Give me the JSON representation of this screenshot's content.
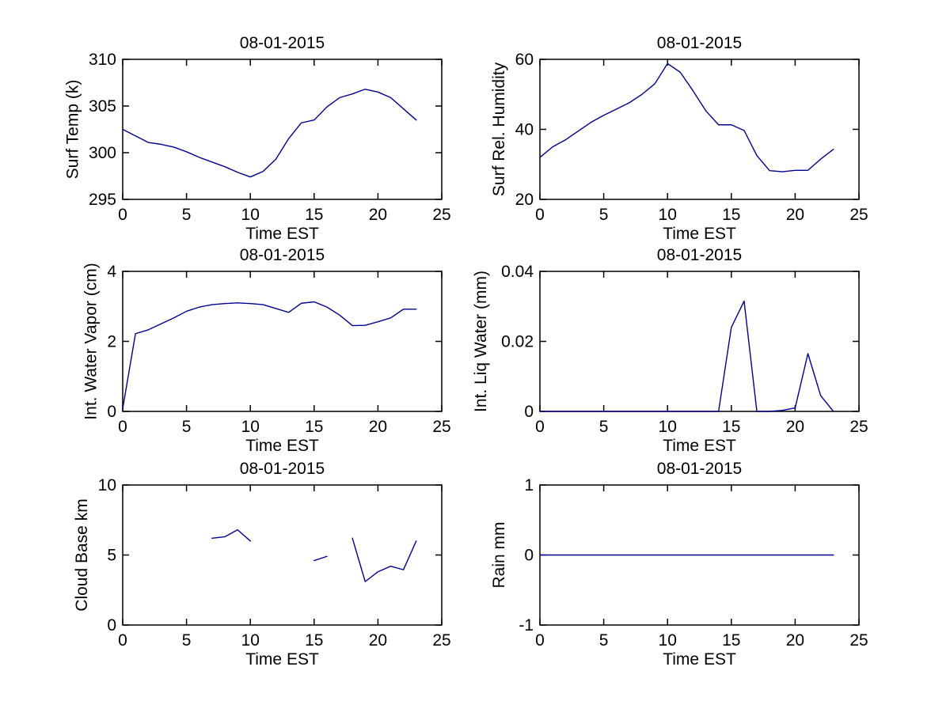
{
  "figure": {
    "background": "#ffffff",
    "axis_color": "#000000",
    "text_color": "#000000",
    "line_color": "#000090"
  },
  "chart_data": [
    {
      "type": "line",
      "title": "08-01-2015",
      "xlabel": "Time EST",
      "ylabel": "Surf Temp (k)",
      "xlim": [
        0,
        25
      ],
      "ylim": [
        295,
        310
      ],
      "xticks": [
        0,
        5,
        10,
        15,
        20,
        25
      ],
      "yticks": [
        295,
        300,
        305,
        310
      ],
      "grid": false,
      "x": [
        0,
        1,
        2,
        3,
        4,
        5,
        6,
        7,
        8,
        9,
        10,
        11,
        12,
        13,
        14,
        15,
        16,
        17,
        18,
        19,
        20,
        21,
        22,
        23
      ],
      "y": [
        302.5,
        301.8,
        301.1,
        300.9,
        300.6,
        300.1,
        299.5,
        299.0,
        298.5,
        297.9,
        297.4,
        298.0,
        299.3,
        301.5,
        303.2,
        303.5,
        304.9,
        305.9,
        306.3,
        306.8,
        306.5,
        305.9,
        304.7,
        303.5
      ]
    },
    {
      "type": "line",
      "title": "08-01-2015",
      "xlabel": "Time EST",
      "ylabel": "Surf Rel. Humidity",
      "xlim": [
        0,
        25
      ],
      "ylim": [
        20,
        60
      ],
      "xticks": [
        0,
        5,
        10,
        15,
        20,
        25
      ],
      "yticks": [
        20,
        40,
        60
      ],
      "grid": false,
      "x": [
        0,
        1,
        2,
        3,
        4,
        5,
        6,
        7,
        8,
        9,
        10,
        11,
        12,
        13,
        14,
        15,
        16,
        17,
        18,
        19,
        20,
        21,
        22,
        23
      ],
      "y": [
        32,
        35,
        37,
        39.5,
        42,
        44,
        45.8,
        47.6,
        50,
        53,
        58.8,
        56.3,
        51,
        45.3,
        41.3,
        41.3,
        39.7,
        32.5,
        28.2,
        27.9,
        28.3,
        28.3,
        31.5,
        34.3
      ]
    },
    {
      "type": "line",
      "title": "08-01-2015",
      "xlabel": "Time EST",
      "ylabel": "Int. Water Vapor (cm)",
      "xlim": [
        0,
        25
      ],
      "ylim": [
        0,
        4
      ],
      "xticks": [
        0,
        5,
        10,
        15,
        20,
        25
      ],
      "yticks": [
        0,
        2,
        4
      ],
      "grid": false,
      "x": [
        0,
        1,
        2,
        3,
        4,
        5,
        6,
        7,
        8,
        9,
        10,
        11,
        12,
        13,
        14,
        15,
        16,
        17,
        18,
        19,
        20,
        21,
        22,
        23
      ],
      "y": [
        0.08,
        2.22,
        2.33,
        2.5,
        2.67,
        2.86,
        2.98,
        3.05,
        3.08,
        3.1,
        3.08,
        3.05,
        2.94,
        2.83,
        3.09,
        3.13,
        2.98,
        2.75,
        2.45,
        2.46,
        2.56,
        2.67,
        2.92,
        2.92
      ]
    },
    {
      "type": "line",
      "title": "08-01-2015",
      "xlabel": "Time EST",
      "ylabel": "Int. Liq Water (mm)",
      "xlim": [
        0,
        25
      ],
      "ylim": [
        0,
        0.04
      ],
      "xticks": [
        0,
        5,
        10,
        15,
        20,
        25
      ],
      "yticks": [
        0,
        0.02,
        0.04
      ],
      "grid": false,
      "x": [
        0,
        1,
        2,
        3,
        4,
        5,
        6,
        7,
        8,
        9,
        10,
        11,
        12,
        13,
        14,
        15,
        16,
        17,
        18,
        19,
        20,
        21,
        22,
        23
      ],
      "y": [
        0,
        0,
        0,
        0,
        0,
        0,
        0,
        0,
        0,
        0,
        0,
        0,
        0,
        0,
        0,
        0.024,
        0.0315,
        0,
        0,
        0.0003,
        0.001,
        0.0165,
        0.0045,
        0
      ]
    },
    {
      "type": "line",
      "title": "08-01-2015",
      "xlabel": "Time EST",
      "ylabel": "Cloud Base km",
      "xlim": [
        0,
        25
      ],
      "ylim": [
        0,
        10
      ],
      "xticks": [
        0,
        5,
        10,
        15,
        20,
        25
      ],
      "yticks": [
        0,
        5,
        10
      ],
      "grid": false,
      "x": [
        0,
        1,
        2,
        3,
        4,
        5,
        6,
        7,
        8,
        9,
        10,
        11,
        12,
        13,
        14,
        15,
        16,
        17,
        18,
        19,
        20,
        21,
        22,
        23
      ],
      "y": [
        null,
        null,
        null,
        null,
        null,
        null,
        null,
        6.2,
        6.3,
        6.8,
        6.0,
        null,
        null,
        null,
        null,
        4.6,
        4.9,
        null,
        6.2,
        3.1,
        3.8,
        4.2,
        3.95,
        6.0
      ]
    },
    {
      "type": "line",
      "title": "08-01-2015",
      "xlabel": "Time EST",
      "ylabel": "Rain mm",
      "xlim": [
        0,
        25
      ],
      "ylim": [
        -1,
        1
      ],
      "xticks": [
        0,
        5,
        10,
        15,
        20,
        25
      ],
      "yticks": [
        -1,
        0,
        1
      ],
      "grid": false,
      "x": [
        0,
        1,
        2,
        3,
        4,
        5,
        6,
        7,
        8,
        9,
        10,
        11,
        12,
        13,
        14,
        15,
        16,
        17,
        18,
        19,
        20,
        21,
        22,
        23
      ],
      "y": [
        0,
        0,
        0,
        0,
        0,
        0,
        0,
        0,
        0,
        0,
        0,
        0,
        0,
        0,
        0,
        0,
        0,
        0,
        0,
        0,
        0,
        0,
        0,
        0
      ]
    }
  ]
}
